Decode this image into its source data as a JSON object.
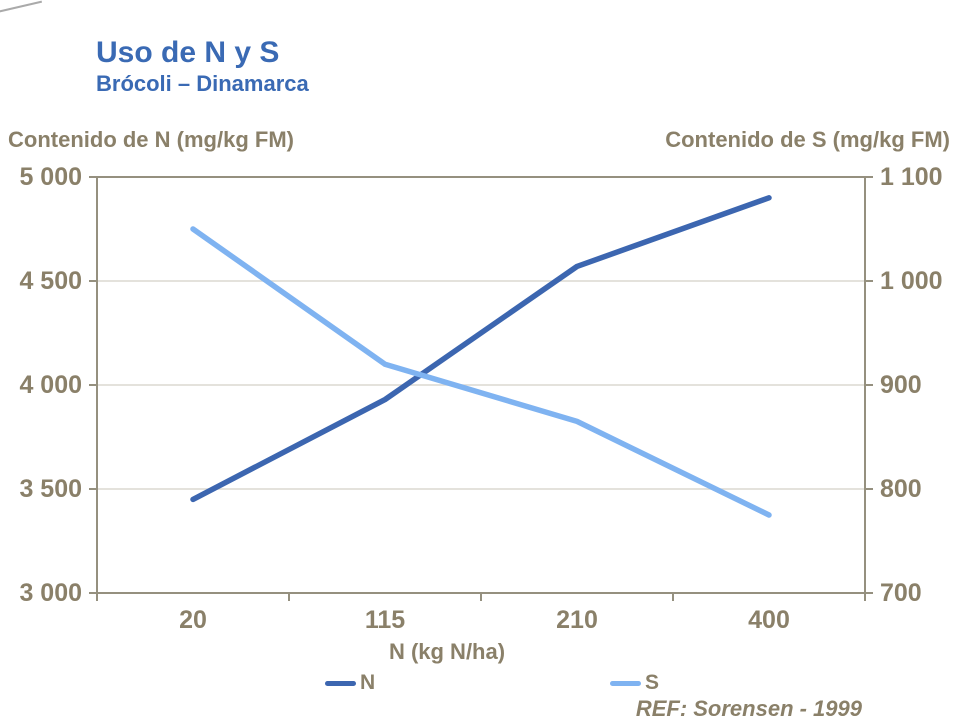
{
  "title": "Uso de N y S",
  "subtitle": "Brócoli – Dinamarca",
  "reference": "REF: Sorensen - 1999",
  "colors": {
    "heading_blue": "#3a6ab4",
    "axis_text": "#8a8069",
    "axis_line": "#95907f",
    "gridline": "#dbd8d1",
    "n_line": "#3c66b0",
    "s_line": "#7fb3f1"
  },
  "chart_data": {
    "type": "line",
    "categories": [
      "20",
      "115",
      "210",
      "400"
    ],
    "series": [
      {
        "name": "N",
        "axis": "left",
        "color": "#3c66b0",
        "values": [
          3450,
          3930,
          4570,
          4900
        ]
      },
      {
        "name": "S",
        "axis": "right",
        "color": "#7fb3f1",
        "values": [
          1050,
          920,
          865,
          775
        ]
      }
    ],
    "left_axis": {
      "title": "Contenido de N (mg/kg FM)",
      "min": 3000,
      "max": 5000,
      "tick_values": [
        5000,
        4500,
        4000,
        3500,
        3000
      ],
      "tick_labels": [
        "5 000",
        "4 500",
        "4 000",
        "3 500",
        "3 000"
      ]
    },
    "right_axis": {
      "title": "Contenido de S (mg/kg FM)",
      "min": 700,
      "max": 1100,
      "tick_values": [
        1100,
        1000,
        900,
        800,
        700
      ],
      "tick_labels": [
        "1 100",
        "1 000",
        "900",
        "800",
        "700"
      ]
    },
    "x_axis": {
      "title": "N (kg N/ha)"
    },
    "grid": true,
    "legend_position": "bottom"
  }
}
